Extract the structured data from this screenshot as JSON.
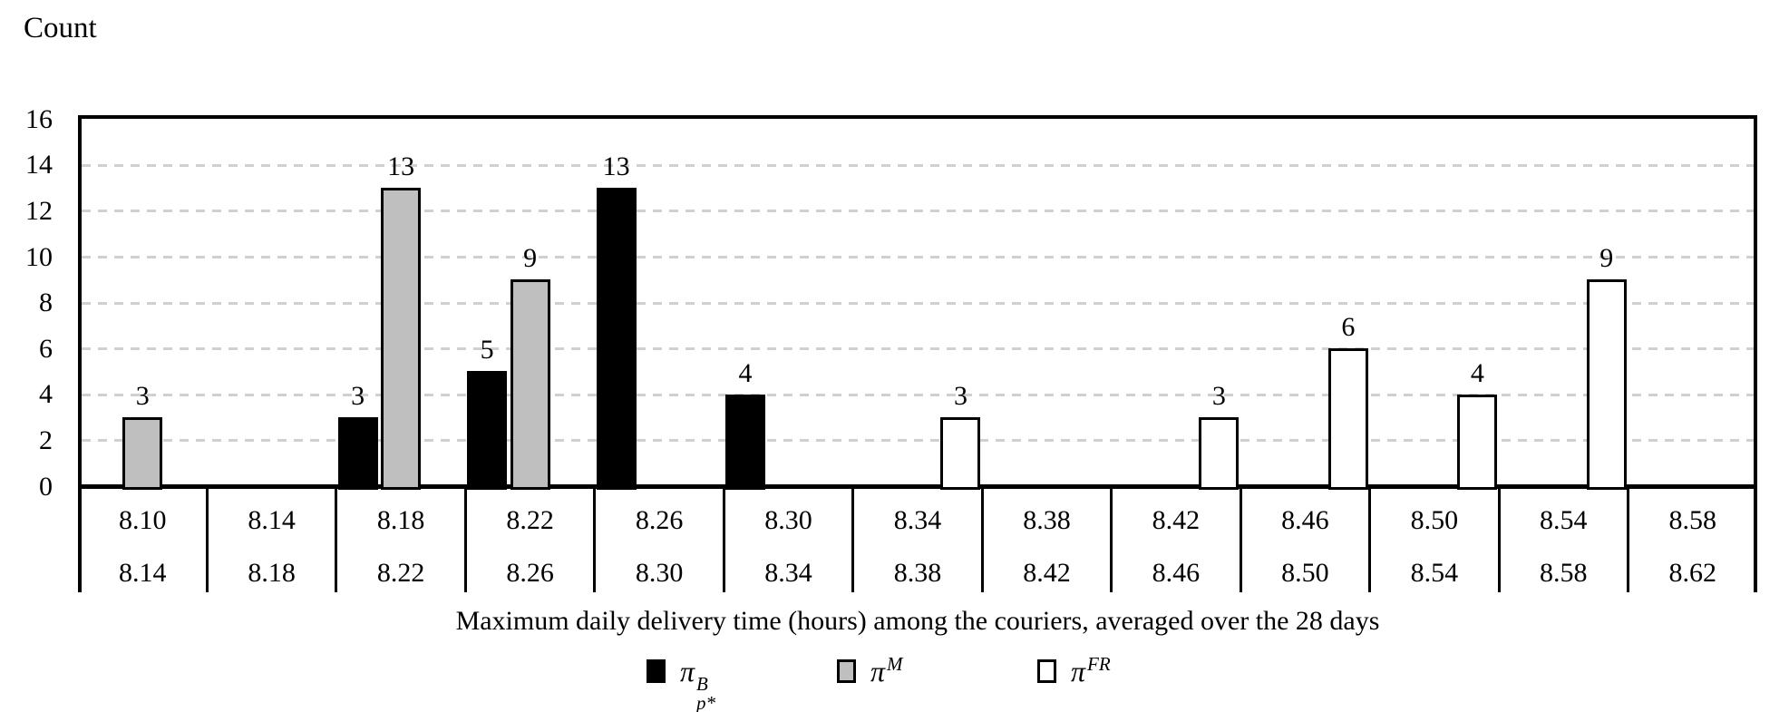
{
  "chart_data": {
    "type": "bar",
    "subtype": "clustered-histogram",
    "ylabel": "Count",
    "xlabel": "Maximum daily delivery time (hours) among the couriers, averaged over the 28 days",
    "ylim": [
      0,
      16
    ],
    "yticks": [
      0,
      2,
      4,
      6,
      8,
      10,
      12,
      14,
      16
    ],
    "grid": "horizontal-dashed-at-even-values",
    "legend_position": "bottom-center",
    "bins": [
      {
        "from": "8.10",
        "to": "8.14"
      },
      {
        "from": "8.14",
        "to": "8.18"
      },
      {
        "from": "8.18",
        "to": "8.22"
      },
      {
        "from": "8.22",
        "to": "8.26"
      },
      {
        "from": "8.26",
        "to": "8.30"
      },
      {
        "from": "8.30",
        "to": "8.34"
      },
      {
        "from": "8.34",
        "to": "8.38"
      },
      {
        "from": "8.38",
        "to": "8.42"
      },
      {
        "from": "8.42",
        "to": "8.46"
      },
      {
        "from": "8.46",
        "to": "8.50"
      },
      {
        "from": "8.50",
        "to": "8.54"
      },
      {
        "from": "8.54",
        "to": "8.58"
      },
      {
        "from": "8.58",
        "to": "8.62"
      }
    ],
    "series": [
      {
        "name": "pi-B-p-star",
        "legend": {
          "base": "π",
          "sup": "B",
          "sub": "p*"
        },
        "fill": "#000000",
        "values": [
          0,
          0,
          3,
          5,
          13,
          4,
          0,
          0,
          0,
          0,
          0,
          0,
          0
        ]
      },
      {
        "name": "pi-M",
        "legend": {
          "base": "π",
          "sup": "M",
          "sub": ""
        },
        "fill": "#bfbfbf",
        "values": [
          3,
          0,
          13,
          9,
          0,
          0,
          0,
          0,
          0,
          0,
          0,
          0,
          0
        ]
      },
      {
        "name": "pi-FR",
        "legend": {
          "base": "π",
          "sup": "FR",
          "sub": ""
        },
        "fill": "#ffffff",
        "values": [
          0,
          0,
          0,
          0,
          0,
          0,
          3,
          0,
          3,
          6,
          4,
          9,
          0
        ]
      }
    ],
    "value_labels_shown_above_bars": true
  },
  "colors": {
    "bar_black": "#000000",
    "bar_gray": "#bfbfbf",
    "bar_white": "#ffffff",
    "gridline": "#d0d0d0",
    "border": "#000000",
    "text": "#000000",
    "background": "#ffffff"
  }
}
